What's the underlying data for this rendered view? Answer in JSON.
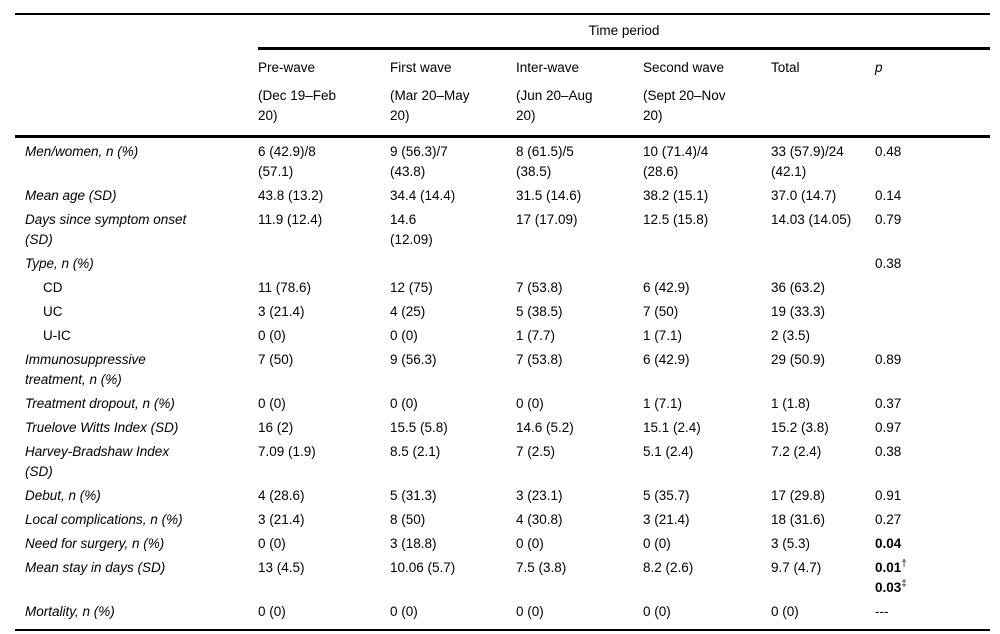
{
  "table": {
    "spanner_label": "Time period",
    "columns": [
      {
        "name": "Pre-wave",
        "dates": [
          "(Dec 19–Feb",
          "20)"
        ]
      },
      {
        "name": "First wave",
        "dates": [
          "(Mar 20–May",
          "20)"
        ]
      },
      {
        "name": "Inter-wave",
        "dates": [
          "(Jun 20–Aug",
          "20)"
        ]
      },
      {
        "name": "Second wave",
        "dates": [
          "(Sept 20–Nov",
          "20)"
        ]
      },
      {
        "name": "Total",
        "dates": []
      },
      {
        "name": "p",
        "dates": [],
        "italic": true
      }
    ],
    "rows": [
      {
        "label": [
          "Men/women, n (%)"
        ],
        "italic": true,
        "cells": [
          [
            "6 (42.9)/8",
            "(57.1)"
          ],
          [
            "9 (56.3)/7",
            "(43.8)"
          ],
          [
            "8 (61.5)/5",
            "(38.5)"
          ],
          [
            "10 (71.4)/4",
            "(28.6)"
          ],
          [
            "33 (57.9)/24",
            "(42.1)"
          ]
        ],
        "p": {
          "parts": [
            {
              "text": "0.48"
            }
          ]
        }
      },
      {
        "label": [
          "Mean age (SD)"
        ],
        "italic": true,
        "cells": [
          [
            "43.8 (13.2)"
          ],
          [
            "34.4 (14.4)"
          ],
          [
            "31.5 (14.6)"
          ],
          [
            "38.2 (15.1)"
          ],
          [
            "37.0 (14.7)"
          ]
        ],
        "p": {
          "parts": [
            {
              "text": "0.14"
            }
          ]
        }
      },
      {
        "label": [
          "Days since symptom onset",
          "(SD)"
        ],
        "italic": true,
        "cells": [
          [
            "11.9 (12.4)"
          ],
          [
            "14.6",
            "(12.09)"
          ],
          [
            "17 (17.09)"
          ],
          [
            "12.5 (15.8)"
          ],
          [
            "14.03 (14.05)"
          ]
        ],
        "p": {
          "parts": [
            {
              "text": "0.79"
            }
          ]
        }
      },
      {
        "label": [
          "Type, n (%)"
        ],
        "italic": true,
        "cells": [
          [],
          [],
          [],
          [],
          []
        ],
        "p": {
          "parts": [
            {
              "text": "0.38"
            }
          ]
        }
      },
      {
        "label": [
          "CD"
        ],
        "italic": false,
        "indent": true,
        "cells": [
          [
            "11 (78.6)"
          ],
          [
            "12 (75)"
          ],
          [
            "7 (53.8)"
          ],
          [
            "6 (42.9)"
          ],
          [
            "36 (63.2)"
          ]
        ],
        "p": {
          "parts": []
        }
      },
      {
        "label": [
          "UC"
        ],
        "italic": false,
        "indent": true,
        "cells": [
          [
            "3 (21.4)"
          ],
          [
            "4 (25)"
          ],
          [
            "5 (38.5)"
          ],
          [
            "7 (50)"
          ],
          [
            "19 (33.3)"
          ]
        ],
        "p": {
          "parts": []
        }
      },
      {
        "label": [
          "U-IC"
        ],
        "italic": false,
        "indent": true,
        "cells": [
          [
            "0 (0)"
          ],
          [
            "0 (0)"
          ],
          [
            "1 (7.7)"
          ],
          [
            "1 (7.1)"
          ],
          [
            "2 (3.5)"
          ]
        ],
        "p": {
          "parts": []
        }
      },
      {
        "label": [
          "Immunosuppressive",
          "treatment, n (%)"
        ],
        "italic": true,
        "cells": [
          [
            "7 (50)"
          ],
          [
            "9 (56.3)"
          ],
          [
            "7 (53.8)"
          ],
          [
            "6 (42.9)"
          ],
          [
            "29 (50.9)"
          ]
        ],
        "p": {
          "parts": [
            {
              "text": "0.89"
            }
          ]
        }
      },
      {
        "label": [
          "Treatment dropout, n (%)"
        ],
        "italic": true,
        "cells": [
          [
            "0 (0)"
          ],
          [
            "0 (0)"
          ],
          [
            "0 (0)"
          ],
          [
            "1 (7.1)"
          ],
          [
            "1 (1.8)"
          ]
        ],
        "p": {
          "parts": [
            {
              "text": "0.37"
            }
          ]
        }
      },
      {
        "label": [
          "Truelove Witts Index (SD)"
        ],
        "italic": true,
        "cells": [
          [
            "16 (2)"
          ],
          [
            "15.5 (5.8)"
          ],
          [
            "14.6 (5.2)"
          ],
          [
            "15.1 (2.4)"
          ],
          [
            "15.2 (3.8)"
          ]
        ],
        "p": {
          "parts": [
            {
              "text": "0.97"
            }
          ]
        }
      },
      {
        "label": [
          "Harvey-Bradshaw Index",
          "(SD)"
        ],
        "italic": true,
        "cells": [
          [
            "7.09 (1.9)"
          ],
          [
            "8.5 (2.1)"
          ],
          [
            "7 (2.5)"
          ],
          [
            "5.1 (2.4)"
          ],
          [
            "7.2 (2.4)"
          ]
        ],
        "p": {
          "parts": [
            {
              "text": "0.38"
            }
          ]
        }
      },
      {
        "label": [
          "Debut, n (%)"
        ],
        "italic": true,
        "cells": [
          [
            "4 (28.6)"
          ],
          [
            "5 (31.3)"
          ],
          [
            "3 (23.1)"
          ],
          [
            "5 (35.7)"
          ],
          [
            "17 (29.8)"
          ]
        ],
        "p": {
          "parts": [
            {
              "text": "0.91"
            }
          ]
        }
      },
      {
        "label": [
          "Local complications, n (%)"
        ],
        "italic": true,
        "cells": [
          [
            "3 (21.4)"
          ],
          [
            "8 (50)"
          ],
          [
            "4 (30.8)"
          ],
          [
            "3 (21.4)"
          ],
          [
            "18 (31.6)"
          ]
        ],
        "p": {
          "parts": [
            {
              "text": "0.27"
            }
          ]
        }
      },
      {
        "label": [
          "Need for surgery, n (%)"
        ],
        "italic": true,
        "cells": [
          [
            "0 (0)"
          ],
          [
            "3 (18.8)"
          ],
          [
            "0 (0)"
          ],
          [
            "0 (0)"
          ],
          [
            "3 (5.3)"
          ]
        ],
        "p": {
          "parts": [
            {
              "text": "0.04",
              "bold": true
            }
          ]
        }
      },
      {
        "label": [
          "Mean stay in days (SD)"
        ],
        "italic": true,
        "cells": [
          [
            "13 (4.5)"
          ],
          [
            "10.06 (5.7)"
          ],
          [
            "7.5 (3.8)"
          ],
          [
            "8.2 (2.6)"
          ],
          [
            "9.7 (4.7)"
          ]
        ],
        "p": {
          "parts": [
            {
              "text": "0.01",
              "bold": true,
              "sup": "†"
            },
            {
              "text": "0.03",
              "bold": true,
              "sup": "‡"
            }
          ]
        }
      },
      {
        "label": [
          "Mortality, n (%)"
        ],
        "italic": true,
        "cells": [
          [
            "0 (0)"
          ],
          [
            "0 (0)"
          ],
          [
            "0 (0)"
          ],
          [
            "0 (0)"
          ],
          [
            "0 (0)"
          ]
        ],
        "p": {
          "parts": [
            {
              "text": "---"
            }
          ]
        }
      }
    ]
  }
}
